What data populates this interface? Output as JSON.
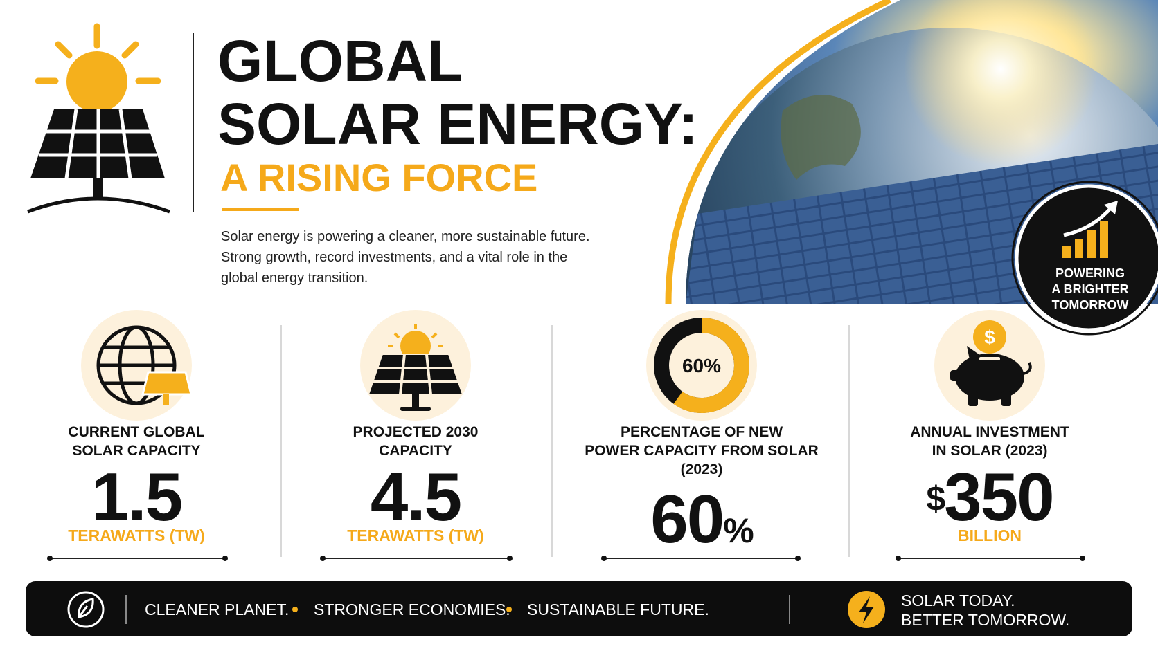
{
  "header": {
    "title_lines": [
      "GLOBAL",
      "SOLAR ENERGY:"
    ],
    "subtitle": "A RISING FORCE",
    "description_lines": [
      "Solar energy is powering a cleaner, more sustainable future.",
      "Strong growth, record investments, and a vital role in the",
      "global energy transition."
    ]
  },
  "badge": {
    "lines": [
      "POWERING",
      "A BRIGHTER",
      "TOMORROW"
    ]
  },
  "stats": [
    {
      "label_lines": [
        "CURRENT GLOBAL",
        "SOLAR CAPACITY"
      ],
      "value": "1.5",
      "unit": "TERAWATTS (TW)"
    },
    {
      "label_lines": [
        "PROJECTED 2030",
        "CAPACITY"
      ],
      "value": "4.5",
      "unit": "TERAWATTS (TW)"
    },
    {
      "label_lines": [
        "PERCENTAGE OF NEW",
        "POWER CAPACITY FROM SOLAR",
        "(2023)"
      ],
      "value": "60",
      "suffix": "%",
      "donut": {
        "value": 60,
        "label": "60%"
      }
    },
    {
      "label_lines": [
        "ANNUAL INVESTMENT",
        "IN SOLAR (2023)"
      ],
      "prefix": "$",
      "value": "350",
      "unit": "BILLION",
      "icon_symbol": "$"
    }
  ],
  "footer": {
    "taglines": [
      "CLEANER PLANET.",
      "STRONGER ECONOMIES.",
      "SUSTAINABLE FUTURE."
    ],
    "slogan_lines": [
      "SOLAR TODAY.",
      "BETTER TOMORROW."
    ]
  }
}
